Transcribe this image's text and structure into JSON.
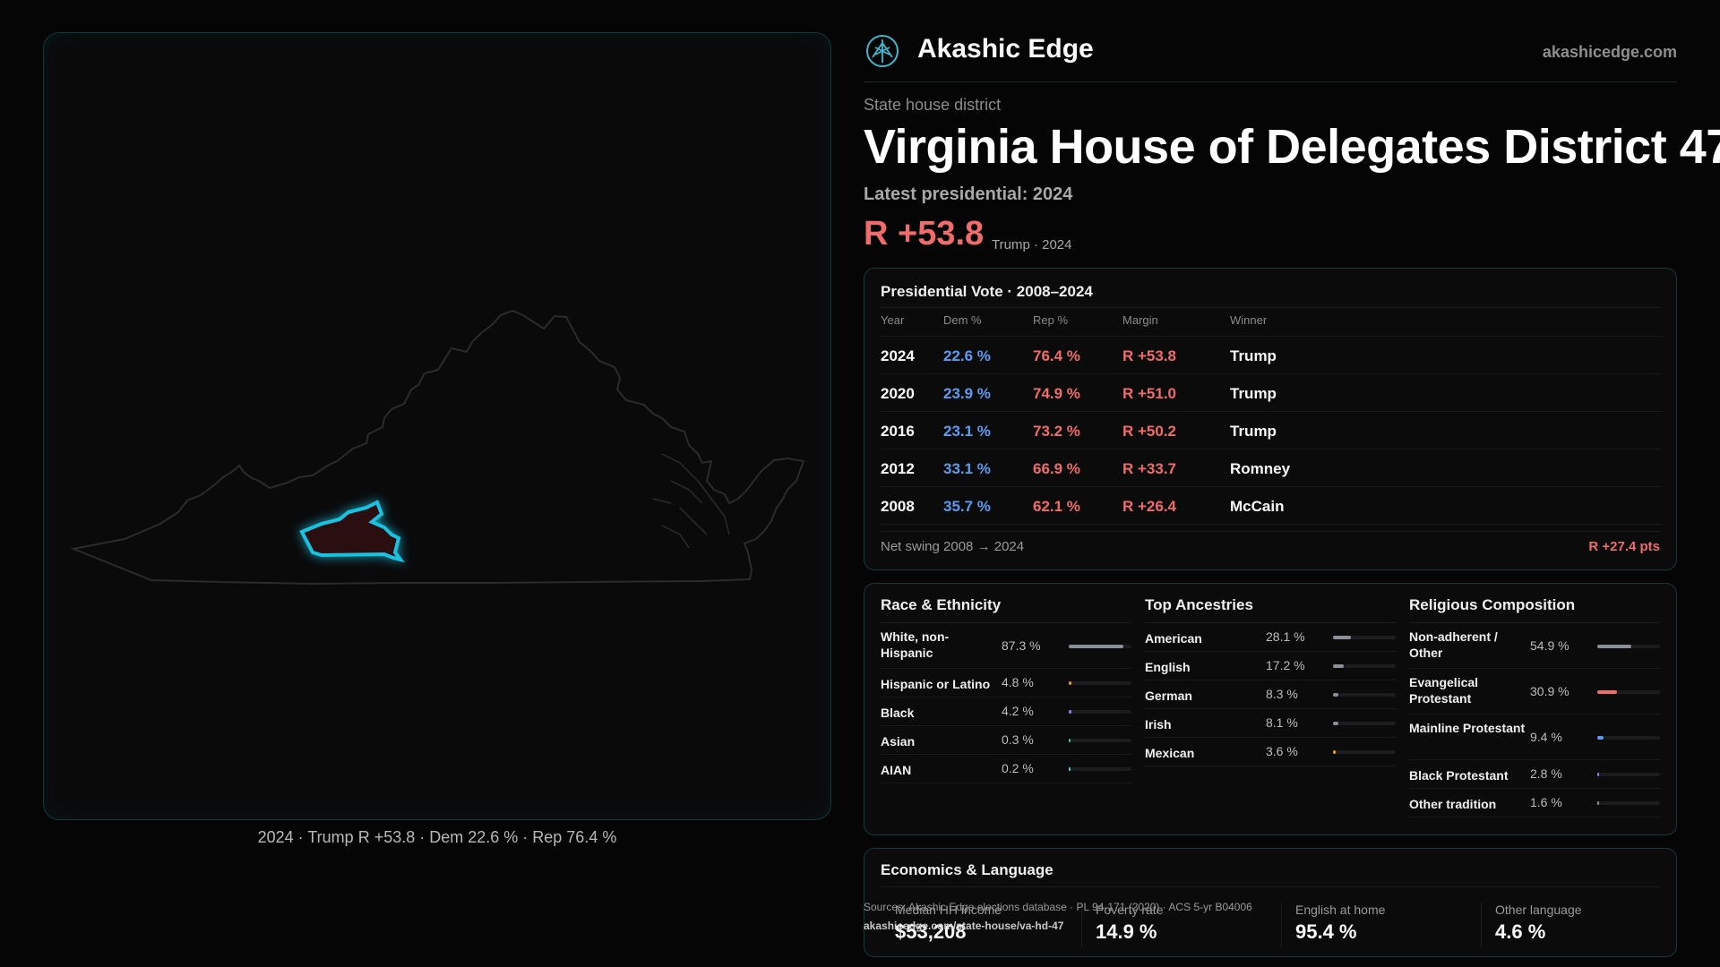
{
  "map": {
    "caption": "2024 · Trump R +53.8 · Dem 22.6 % · Rep 76.4 %"
  },
  "header": {
    "brand": "Akashic Edge",
    "site": "akashicedge.com"
  },
  "district": {
    "kicker": "State house district",
    "title": "Virginia House of Delegates District 47",
    "latest": "Latest presidential: 2024",
    "margin": "R +53.8",
    "margin_sub": "Trump · 2024"
  },
  "vote": {
    "title": "Presidential Vote · 2008–2024",
    "headers": [
      "Year",
      "Dem %",
      "Rep %",
      "Margin",
      "Winner"
    ],
    "rows": [
      [
        "2024",
        "22.6 %",
        "76.4 %",
        "R +53.8",
        "Trump"
      ],
      [
        "2020",
        "23.9 %",
        "74.9 %",
        "R +51.0",
        "Trump"
      ],
      [
        "2016",
        "23.1 %",
        "73.2 %",
        "R +50.2",
        "Trump"
      ],
      [
        "2012",
        "33.1 %",
        "66.9 %",
        "R +33.7",
        "Romney"
      ],
      [
        "2008",
        "35.7 %",
        "62.1 %",
        "R +26.4",
        "McCain"
      ]
    ],
    "swing_label": "Net swing 2008 → 2024",
    "swing_value": "R +27.4 pts"
  },
  "race": {
    "title": "Race & Ethnicity",
    "items": [
      {
        "label": "White, non-Hispanic",
        "pct": "87.3 %",
        "value": 87.3,
        "color": "#8a8f98"
      },
      {
        "label": "Hispanic or Latino",
        "pct": "4.8 %",
        "value": 4.8,
        "color": "#e0962f"
      },
      {
        "label": "Black",
        "pct": "4.2 %",
        "value": 4.2,
        "color": "#8a7cf0"
      },
      {
        "label": "Asian",
        "pct": "0.3 %",
        "value": 0.3,
        "color": "#3cc28a"
      },
      {
        "label": "AIAN",
        "pct": "0.2 %",
        "value": 0.2,
        "color": "#5ac8d8"
      }
    ]
  },
  "ancestry": {
    "title": "Top Ancestries",
    "items": [
      {
        "label": "American",
        "pct": "28.1 %",
        "value": 28.1,
        "color": "#8a8f98"
      },
      {
        "label": "English",
        "pct": "17.2 %",
        "value": 17.2,
        "color": "#8a8f98"
      },
      {
        "label": "German",
        "pct": "8.3 %",
        "value": 8.3,
        "color": "#8a8f98"
      },
      {
        "label": "Irish",
        "pct": "8.1 %",
        "value": 8.1,
        "color": "#8a8f98"
      },
      {
        "label": "Mexican",
        "pct": "3.6 %",
        "value": 3.6,
        "color": "#e0962f"
      }
    ]
  },
  "religion": {
    "title": "Religious Composition",
    "items": [
      {
        "label": "Non-adherent / Other",
        "pct": "54.9 %",
        "value": 54.9,
        "color": "#8a8f98"
      },
      {
        "label": "Evangelical Protestant",
        "pct": "30.9 %",
        "value": 30.9,
        "color": "#f06b6b"
      },
      {
        "label": "Mainline Protestant",
        "pct": "9.4 %",
        "value": 9.4,
        "color": "#5b9cf0"
      },
      {
        "label": "Black Protestant",
        "pct": "2.8 %",
        "value": 2.8,
        "color": "#8a7cf0"
      },
      {
        "label": "Other tradition",
        "pct": "1.6 %",
        "value": 1.6,
        "color": "#8a8f98"
      }
    ]
  },
  "economics": {
    "title": "Economics & Language",
    "items": [
      {
        "label": "Median HH income",
        "value": "$53,208"
      },
      {
        "label": "Poverty rate",
        "value": "14.9 %"
      },
      {
        "label": "English at home",
        "value": "95.4 %"
      },
      {
        "label": "Other language",
        "value": "4.6 %"
      }
    ]
  },
  "footer": {
    "sources": "Sources: Akashic Edge elections database · PL 94-171 (2020) · ACS 5-yr B04006",
    "url": "akashicedge.com/state-house/va-hd-47"
  }
}
